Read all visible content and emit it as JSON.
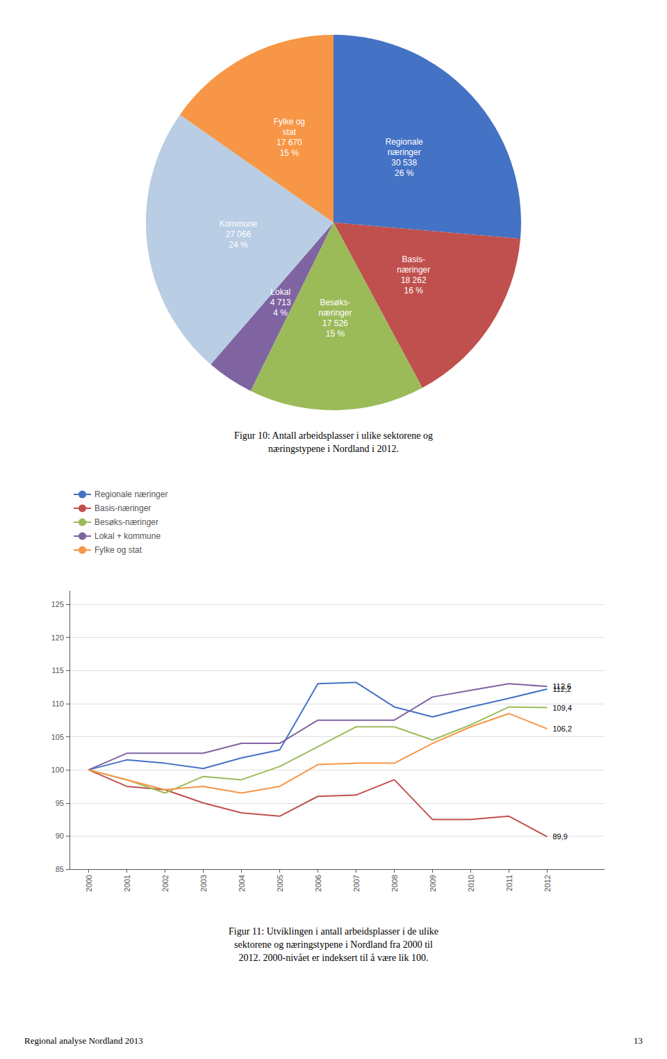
{
  "chart_data": [
    {
      "type": "pie",
      "title": "Figur 10: Antall arbeidsplasser i ulike sektorene og\nnæringstypene i Nordland i 2012.",
      "categories": [
        "Regionale\nnæringer\n30 538\n26 %",
        "Basis-\nnæringer\n18 262\n16 %",
        "Besøks-\nnæringer\n17 526\n15 %",
        "Lokal\n4 713\n4 %",
        "Kommune\n27 066\n24 %",
        "Fylke og\nstat\n17 670\n15 %"
      ],
      "values": [
        30538,
        18262,
        17526,
        4713,
        27066,
        17670
      ],
      "colors": [
        "#4472C4",
        "#C0504D",
        "#9BBB59",
        "#8064A2",
        "#B9CDE4",
        "#F79646"
      ]
    },
    {
      "type": "line",
      "title": "Figur 11: Utviklingen i antall arbeidsplasser i de ulike\nsektorene og næringstypene i Nordland fra 2000 til\n2012. 2000-nivået er indeksert til å være lik 100.",
      "x": [
        2000,
        2001,
        2002,
        2003,
        2004,
        2005,
        2006,
        2007,
        2008,
        2009,
        2010,
        2011,
        2012
      ],
      "xlim": [
        1999.5,
        2013.5
      ],
      "xticks": [
        2000,
        2001,
        2002,
        2003,
        2004,
        2005,
        2006,
        2007,
        2008,
        2009,
        2010,
        2011,
        2012
      ],
      "ylim": [
        85,
        127
      ],
      "yticks": [
        85,
        90,
        95,
        100,
        105,
        110,
        115,
        120,
        125
      ],
      "grid": true,
      "legend": "top",
      "series": [
        {
          "name": "Regionale næringer",
          "color": "#4472C4",
          "values": [
            100.0,
            101.5,
            101.0,
            100.2,
            101.8,
            103.0,
            113.0,
            113.2,
            109.5,
            108.0,
            109.5,
            110.8,
            112.2
          ],
          "value_labels": [
            null,
            null,
            null,
            null,
            null,
            null,
            null,
            null,
            null,
            null,
            null,
            null,
            "112,2"
          ]
        },
        {
          "name": "Basis-næringer",
          "color": "#C0504D",
          "values": [
            100.0,
            97.5,
            97.0,
            95.0,
            93.5,
            93.0,
            96.0,
            96.2,
            98.5,
            92.5,
            92.5,
            93.0,
            89.9
          ],
          "value_labels": [
            null,
            null,
            null,
            null,
            null,
            null,
            null,
            null,
            null,
            null,
            null,
            null,
            "89,9"
          ]
        },
        {
          "name": "Besøks-næringer",
          "color": "#9BBB59",
          "values": [
            100.0,
            98.5,
            96.5,
            99.0,
            98.5,
            100.5,
            103.5,
            106.5,
            106.5,
            104.5,
            106.8,
            109.5,
            109.4
          ],
          "value_labels": [
            null,
            null,
            null,
            null,
            null,
            null,
            null,
            null,
            null,
            null,
            null,
            null,
            "109,4"
          ]
        },
        {
          "name": "Lokal + kommune",
          "color": "#8064A2",
          "values": [
            100.0,
            102.5,
            102.5,
            102.5,
            104.0,
            104.0,
            107.5,
            107.5,
            107.5,
            111.0,
            112.0,
            113.0,
            112.6
          ],
          "value_labels": [
            null,
            null,
            null,
            null,
            null,
            null,
            null,
            null,
            null,
            null,
            null,
            null,
            "112,6"
          ]
        },
        {
          "name": "Fylke og stat",
          "color": "#F79646",
          "values": [
            100.0,
            98.5,
            97.0,
            97.5,
            96.5,
            97.5,
            100.8,
            101.0,
            101.0,
            104.0,
            106.5,
            108.5,
            106.2
          ],
          "value_labels": [
            null,
            null,
            null,
            null,
            null,
            null,
            null,
            null,
            null,
            null,
            null,
            null,
            "106,2"
          ]
        }
      ],
      "annotations": [
        "Regional analyse Nordland 2013",
        "13"
      ]
    }
  ]
}
